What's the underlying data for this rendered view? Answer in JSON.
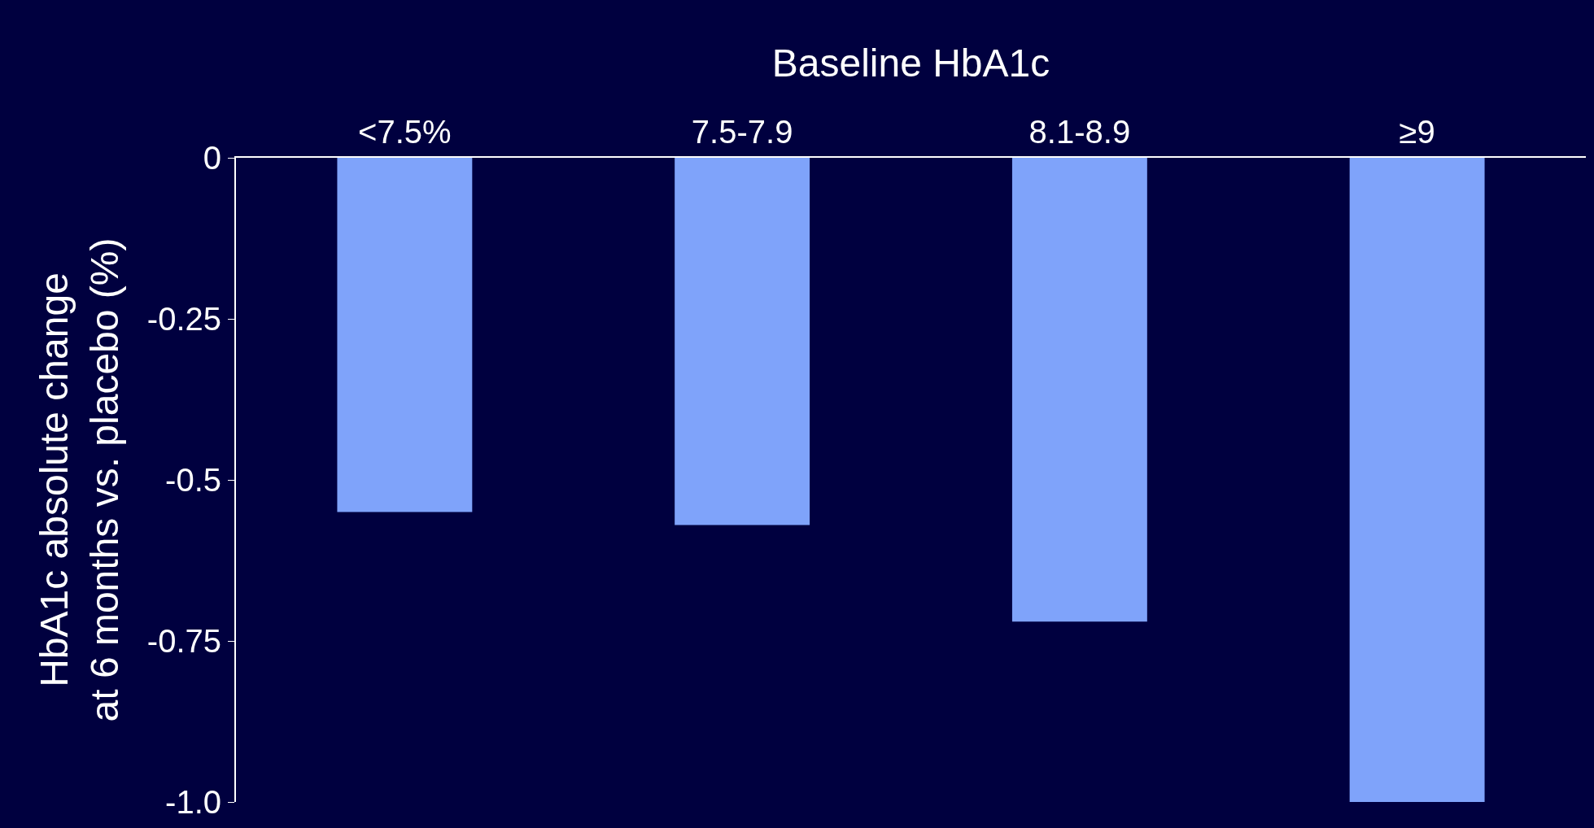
{
  "chart_data": {
    "type": "bar",
    "xlabel": "Baseline HbA1c",
    "ylabel": "HbA1c absolute change\nat 6 months vs. placebo (%)",
    "categories": [
      "<7.5%",
      "7.5-7.9",
      "8.1-8.9",
      "≥9"
    ],
    "values": [
      -0.55,
      -0.57,
      -0.72,
      -1.0
    ],
    "color": "#7fa3fa",
    "ylim": [
      -1.0,
      0
    ],
    "yticks": [
      0,
      -0.25,
      -0.5,
      -0.75,
      {
        "value": -1.0,
        "label": "-1.0"
      }
    ],
    "grid": false
  }
}
